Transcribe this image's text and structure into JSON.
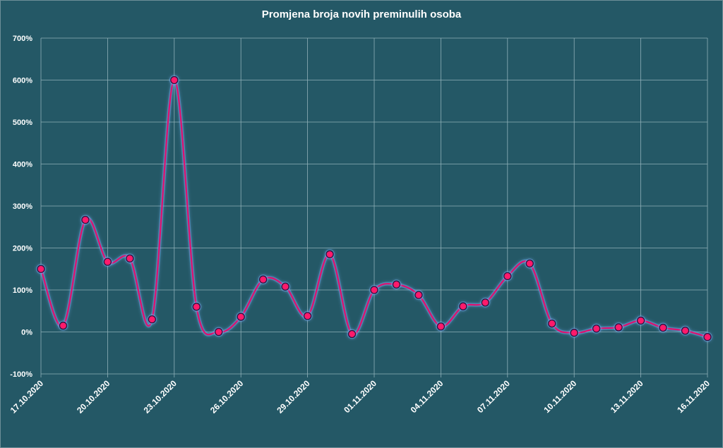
{
  "chart_data": {
    "type": "line",
    "title": "Promjena broja novih preminulih osoba",
    "xlabel": "",
    "ylabel": "",
    "ylim": [
      -100,
      700
    ],
    "y_ticks": [
      "-100%",
      "0%",
      "100%",
      "200%",
      "300%",
      "400%",
      "500%",
      "600%",
      "700%"
    ],
    "x_ticks": [
      "17.10.2020",
      "20.10.2020",
      "23.10.2020",
      "26.10.2020",
      "29.10.2020",
      "01.11.2020",
      "04.11.2020",
      "07.11.2020",
      "10.11.2020",
      "13.11.2020",
      "16.11.2020"
    ],
    "grid": true,
    "legend": "none",
    "x": [
      "17.10.2020",
      "18.10.2020",
      "19.10.2020",
      "20.10.2020",
      "21.10.2020",
      "22.10.2020",
      "23.10.2020",
      "24.10.2020",
      "25.10.2020",
      "26.10.2020",
      "27.10.2020",
      "28.10.2020",
      "29.10.2020",
      "30.10.2020",
      "31.10.2020",
      "01.11.2020",
      "02.11.2020",
      "03.11.2020",
      "04.11.2020",
      "05.11.2020",
      "06.11.2020",
      "07.11.2020",
      "08.11.2020",
      "09.11.2020",
      "10.11.2020",
      "11.11.2020",
      "12.11.2020",
      "13.11.2020",
      "14.11.2020",
      "15.11.2020",
      "16.11.2020"
    ],
    "values": [
      150,
      15,
      267,
      167,
      175,
      30,
      600,
      60,
      0,
      36,
      125,
      108,
      38,
      185,
      -5,
      100,
      113,
      88,
      13,
      61,
      70,
      133,
      163,
      20,
      -2,
      8,
      11,
      27,
      10,
      3,
      -12
    ],
    "colors": {
      "background": "#245866",
      "grid": "#8fb0b8",
      "line": "#e0106e",
      "marker_fill": "#ff1a6b",
      "marker_edge": "#2a1440",
      "glow": "#7fb4ff"
    }
  }
}
